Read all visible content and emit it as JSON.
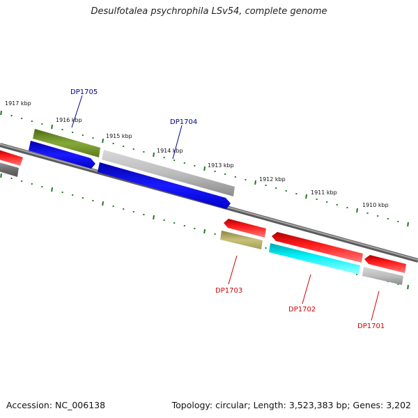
{
  "title": "Desulfotalea psychrophila LSv54, complete genome",
  "footer": {
    "accession": "Accession: NC_006138",
    "topology": "Topology: circular; Length: 3,523,383 bp; Genes: 3,202"
  },
  "colors": {
    "backbone": "#808080",
    "ticks": "#1a7a1a",
    "plus_strand_label": "#00008b",
    "minus_strand_label": "#cc0000"
  },
  "ticks_kbp": [
    "1917 kbp",
    "1916 kbp",
    "1915 kbp",
    "1914 kbp",
    "1913 kbp",
    "1912 kbp",
    "1911 kbp",
    "1910 kbp"
  ],
  "genes": [
    {
      "id": "DP1705",
      "strand": "+",
      "color": "#6b8e23"
    },
    {
      "id": "DP1704",
      "strand": "+",
      "color": "#0000ee"
    },
    {
      "id": "DP1703",
      "strand": "-",
      "color": "#bdb76b"
    },
    {
      "id": "DP1702",
      "strand": "-",
      "color": "#00e5ee"
    },
    {
      "id": "DP1701",
      "strand": "-",
      "color": "#aaaaaa"
    }
  ]
}
